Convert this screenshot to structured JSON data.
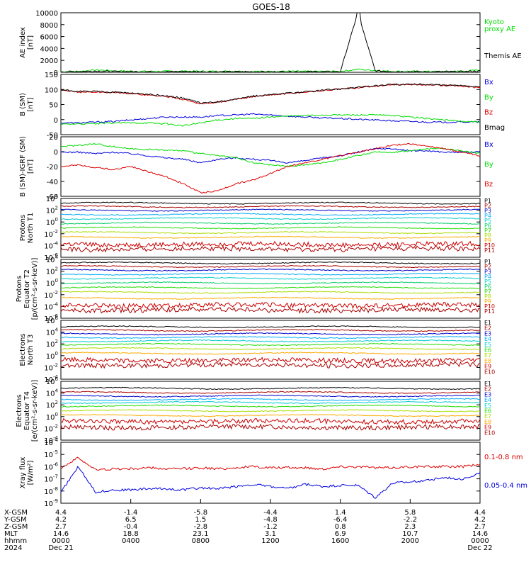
{
  "title": "GOES-18",
  "colors": {
    "black": "#000000",
    "red": "#dd0000",
    "green": "#00dd00",
    "blue": "#0000dd",
    "series": [
      "#000000",
      "#aa0000",
      "#0000cc",
      "#00aaff",
      "#00cccc",
      "#00cc66",
      "#22dd00",
      "#aadd00",
      "#dddd00",
      "#ffaa00",
      "#cc0000"
    ]
  },
  "panels": [
    {
      "id": "ae",
      "ylabel": [
        "AE index",
        "[nT]"
      ],
      "scale": "linear",
      "ylim": [
        0,
        10000
      ],
      "yticks": [
        "10000",
        "8000",
        "6000",
        "4000",
        "2000",
        "0"
      ],
      "legend": [
        {
          "text": "Kyoto",
          "color": "#00dd00"
        },
        {
          "text": "proxy AE",
          "color": "#00dd00"
        },
        {
          "text": "Themis AE",
          "color": "#000000"
        }
      ],
      "series": [
        {
          "name": "Kyoto",
          "color": "#00dd00",
          "values": [
            100,
            150,
            400,
            250,
            180,
            150,
            160,
            200,
            160,
            150,
            180,
            140,
            130,
            160,
            140,
            140,
            150,
            500,
            300,
            160,
            150,
            130,
            140,
            160,
            400
          ]
        },
        {
          "name": "Themis AE",
          "color": "#000000",
          "values": [
            80,
            130,
            200,
            120,
            100,
            90,
            100,
            120,
            90,
            80,
            100,
            90,
            80,
            100,
            90,
            90,
            100,
            10000,
            250,
            120,
            100,
            90,
            100,
            120,
            200
          ]
        }
      ]
    },
    {
      "id": "bsm",
      "ylabel": [
        "B (SM)",
        "[nT]"
      ],
      "scale": "linear",
      "ylim": [
        -55,
        150
      ],
      "yticks": [
        "150",
        "100",
        "50",
        "0",
        "-50"
      ],
      "legend": [
        {
          "text": "Bx",
          "color": "#0000dd"
        },
        {
          "text": "By",
          "color": "#00dd00"
        },
        {
          "text": "Bz",
          "color": "#dd0000"
        },
        {
          "text": "Bmag",
          "color": "#000000"
        }
      ],
      "series": [
        {
          "name": "Bx",
          "color": "#0000dd",
          "values": [
            -15,
            -15,
            -12,
            -10,
            -5,
            0,
            5,
            5,
            5,
            10,
            12,
            15,
            12,
            8,
            5,
            2,
            0,
            -3,
            -5,
            -8,
            -10,
            -12,
            -13,
            -12,
            -12
          ]
        },
        {
          "name": "By",
          "color": "#00dd00",
          "values": [
            -20,
            -18,
            -18,
            -15,
            -15,
            -15,
            -18,
            -25,
            -15,
            -5,
            0,
            0,
            5,
            8,
            10,
            12,
            12,
            12,
            12,
            10,
            5,
            0,
            -5,
            -10,
            -12
          ]
        },
        {
          "name": "Bz",
          "color": "#dd0000",
          "values": [
            95,
            90,
            90,
            88,
            85,
            80,
            75,
            65,
            50,
            55,
            65,
            75,
            80,
            85,
            90,
            95,
            100,
            105,
            110,
            115,
            115,
            115,
            112,
            110,
            105
          ]
        },
        {
          "name": "Bmag",
          "color": "#000000",
          "values": [
            97,
            92,
            92,
            90,
            87,
            82,
            77,
            70,
            52,
            57,
            66,
            76,
            81,
            86,
            91,
            96,
            101,
            106,
            111,
            116,
            116,
            116,
            113,
            111,
            106
          ]
        }
      ]
    },
    {
      "id": "bigrf",
      "ylabel": [
        "B (SM)-IGRF (SM)",
        "[nT]"
      ],
      "scale": "linear",
      "ylim": [
        -63,
        22
      ],
      "yticks": [
        "20",
        "0",
        "-20",
        "-40",
        "-60"
      ],
      "legend": [
        {
          "text": "Bx",
          "color": "#0000dd"
        },
        {
          "text": "By",
          "color": "#00dd00"
        },
        {
          "text": "Bz",
          "color": "#dd0000"
        }
      ],
      "series": [
        {
          "name": "Bx",
          "color": "#0000dd",
          "values": [
            0,
            0,
            -2,
            0,
            -2,
            -5,
            -8,
            -10,
            -15,
            -10,
            -8,
            -10,
            -12,
            -15,
            -12,
            -8,
            -5,
            0,
            5,
            5,
            2,
            2,
            0,
            0,
            0
          ]
        },
        {
          "name": "By",
          "color": "#00dd00",
          "values": [
            8,
            10,
            12,
            8,
            5,
            4,
            3,
            2,
            -2,
            -5,
            -8,
            -15,
            -18,
            -20,
            -18,
            -15,
            -10,
            -5,
            0,
            0,
            2,
            5,
            5,
            2,
            -2
          ]
        },
        {
          "name": "Bz",
          "color": "#dd0000",
          "values": [
            -20,
            -18,
            -22,
            -25,
            -20,
            -28,
            -35,
            -45,
            -58,
            -55,
            -45,
            -40,
            -30,
            -20,
            -15,
            -10,
            -5,
            0,
            5,
            10,
            12,
            8,
            5,
            0,
            -5
          ]
        }
      ]
    },
    {
      "id": "pn",
      "ylabel": [
        "Protons",
        "North T1"
      ],
      "scale": "log",
      "ylim": [
        -6,
        4
      ],
      "yticks": [
        "10^4",
        "10^2",
        "10^0",
        "10^-2",
        "10^-4",
        "10^-6"
      ],
      "legend": [
        {
          "text": "P1",
          "color": "#000000"
        },
        {
          "text": "P2",
          "color": "#aa0000"
        },
        {
          "text": "P3",
          "color": "#0000cc"
        },
        {
          "text": "P4",
          "color": "#00aaff"
        },
        {
          "text": "P5",
          "color": "#00cccc"
        },
        {
          "text": "P6",
          "color": "#00cc66"
        },
        {
          "text": "P7",
          "color": "#22dd00"
        },
        {
          "text": "P8",
          "color": "#aadd00"
        },
        {
          "text": "P9",
          "color": "#ffaa00"
        },
        {
          "text": "P10",
          "color": "#cc0000"
        },
        {
          "text": "P11",
          "color": "#aa0000"
        }
      ],
      "levels": [
        3.2,
        2.6,
        2.0,
        1.3,
        0.6,
        -0.2,
        -1.0,
        -1.8,
        -2.6,
        -3.8,
        -4.6
      ]
    },
    {
      "id": "pe",
      "ylabel": [
        "Protons",
        "Equator T2",
        "[p/(cm²-s-sr-keV)]"
      ],
      "scale": "log",
      "ylim": [
        -6,
        4
      ],
      "yticks": [
        "10^4",
        "10^2",
        "10^0",
        "10^-2",
        "10^-4",
        "10^-6"
      ],
      "legend": [
        {
          "text": "P1",
          "color": "#000000"
        },
        {
          "text": "P2",
          "color": "#aa0000"
        },
        {
          "text": "P3",
          "color": "#0000cc"
        },
        {
          "text": "P4",
          "color": "#00aaff"
        },
        {
          "text": "P5",
          "color": "#00cccc"
        },
        {
          "text": "P6",
          "color": "#00cc66"
        },
        {
          "text": "P7",
          "color": "#22dd00"
        },
        {
          "text": "P8",
          "color": "#aadd00"
        },
        {
          "text": "P9",
          "color": "#ffaa00"
        },
        {
          "text": "P10",
          "color": "#cc0000"
        },
        {
          "text": "P11",
          "color": "#aa0000"
        }
      ],
      "levels": [
        3.4,
        2.8,
        2.2,
        1.5,
        0.8,
        0.0,
        -0.8,
        -1.6,
        -2.6,
        -3.8,
        -4.6
      ]
    },
    {
      "id": "en",
      "ylabel": [
        "Electrons",
        "North T3"
      ],
      "scale": "log",
      "ylim": [
        -4,
        6
      ],
      "yticks": [
        "10^6",
        "10^4",
        "10^2",
        "10^0",
        "10^-2",
        "10^-4"
      ],
      "legend": [
        {
          "text": "E1",
          "color": "#000000"
        },
        {
          "text": "E2",
          "color": "#aa0000"
        },
        {
          "text": "E3",
          "color": "#0000cc"
        },
        {
          "text": "E4",
          "color": "#00aaff"
        },
        {
          "text": "E5",
          "color": "#00cccc"
        },
        {
          "text": "E6",
          "color": "#22dd00"
        },
        {
          "text": "E7",
          "color": "#aadd00"
        },
        {
          "text": "E8",
          "color": "#ffaa00"
        },
        {
          "text": "E9",
          "color": "#cc0000"
        },
        {
          "text": "E10",
          "color": "#aa0000"
        }
      ],
      "levels": [
        4.9,
        4.3,
        3.7,
        3.1,
        2.5,
        1.9,
        1.2,
        0.4,
        -0.8,
        -1.6
      ]
    },
    {
      "id": "ee",
      "ylabel": [
        "Electrons",
        "Equator T4",
        "[e/(cm²-s-sr-keV)]"
      ],
      "scale": "log",
      "ylim": [
        -4,
        6
      ],
      "yticks": [
        "10^6",
        "10^4",
        "10^2",
        "10^0",
        "10^-2",
        "10^-4"
      ],
      "legend": [
        {
          "text": "E1",
          "color": "#000000"
        },
        {
          "text": "E2",
          "color": "#aa0000"
        },
        {
          "text": "E3",
          "color": "#0000cc"
        },
        {
          "text": "E4",
          "color": "#00aaff"
        },
        {
          "text": "E5",
          "color": "#00cccc"
        },
        {
          "text": "E6",
          "color": "#22dd00"
        },
        {
          "text": "E7",
          "color": "#aadd00"
        },
        {
          "text": "E8",
          "color": "#ffaa00"
        },
        {
          "text": "E9",
          "color": "#cc0000"
        },
        {
          "text": "E10",
          "color": "#aa0000"
        }
      ],
      "levels": [
        4.8,
        4.1,
        3.5,
        2.9,
        2.4,
        1.8,
        1.0,
        0.2,
        -0.8,
        -1.8
      ]
    },
    {
      "id": "xray",
      "ylabel": [
        "Xray flux",
        "[W/m²]"
      ],
      "scale": "log",
      "ylim": [
        -9.3,
        -3.8
      ],
      "yticks": [
        "10^-4",
        "10^-5",
        "10^-6",
        "10^-7",
        "10^-8",
        "10^-9"
      ],
      "legend": [
        {
          "text": "0.1-0.8 nm",
          "color": "#dd0000"
        },
        {
          "text": "0.05-0.4 nm",
          "color": "#0000dd"
        }
      ],
      "series": [
        {
          "name": "0.1-0.8 nm",
          "color": "#dd0000",
          "values": [
            -6.1,
            -5.2,
            -6.3,
            -6.2,
            -6.2,
            -6.1,
            -6.2,
            -6.2,
            -6.1,
            -6.2,
            -6.1,
            -6.0,
            -6.1,
            -6.1,
            -6.1,
            -6.2,
            -6.0,
            -6.0,
            -6.1,
            -6.1,
            -6.0,
            -6.0,
            -6.0,
            -6.0,
            -5.8
          ]
        },
        {
          "name": "0.05-0.4 nm",
          "color": "#0000dd",
          "values": [
            -8.3,
            -6.0,
            -8.3,
            -8.1,
            -8.1,
            -8.0,
            -8.0,
            -8.1,
            -7.9,
            -8.0,
            -7.8,
            -7.6,
            -7.8,
            -8.0,
            -7.6,
            -7.8,
            -7.7,
            -7.7,
            -8.8,
            -7.5,
            -7.4,
            -7.2,
            -7.0,
            -7.1,
            -6.6
          ]
        }
      ]
    }
  ],
  "footer": {
    "rows": [
      {
        "label": "X-GSM",
        "values": [
          "4.4",
          "-1.4",
          "-5.8",
          "-4.4",
          "1.4",
          "5.8",
          "4.4"
        ]
      },
      {
        "label": "Y-GSM",
        "values": [
          "4.2",
          "6.5",
          "1.5",
          "-4.8",
          "-6.4",
          "-2.2",
          "4.2"
        ]
      },
      {
        "label": "Z-GSM",
        "values": [
          "2.7",
          "-0.4",
          "-2.8",
          "-1.2",
          "0.8",
          "2.3",
          "2.7"
        ]
      },
      {
        "label": "MLT",
        "values": [
          "14.6",
          "18.8",
          "23.1",
          "3.1",
          "6.9",
          "10.7",
          "14.6"
        ]
      },
      {
        "label": "hhmm",
        "values": [
          "0000",
          "0400",
          "0800",
          "1200",
          "1600",
          "2000",
          "0000"
        ]
      },
      {
        "label": "2024",
        "values": [
          "Dec 21",
          "",
          "",
          "",
          "",
          "",
          "Dec 22"
        ]
      }
    ]
  },
  "chart_data": {
    "type": "line",
    "title": "GOES-18",
    "x": [
      "0000",
      "0400",
      "0800",
      "1200",
      "1600",
      "2000",
      "0000"
    ],
    "xlabel": "hhmm",
    "date_start": "Dec 21",
    "date_end": "Dec 22"
  }
}
